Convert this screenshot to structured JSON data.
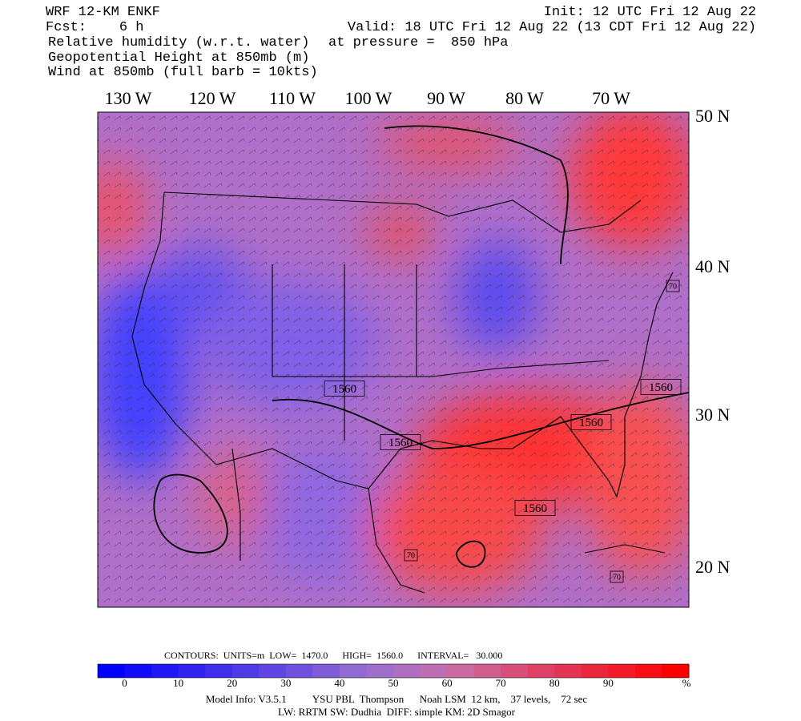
{
  "header": {
    "left": [
      "WRF 12-KM ENKF",
      "Fcst:    6 h",
      "Relative humidity (w.r.t. water)",
      "Geopotential Height at 850mb (m)",
      "Wind at 850mb (full barb = 10kts)"
    ],
    "right": [
      "Init: 12 UTC Fri 12 Aug 22",
      "Valid: 18 UTC Fri 12 Aug 22 (13 CDT Fri 12 Aug 22)",
      "at pressure =  850 hPa"
    ]
  },
  "map": {
    "longitude_labels": [
      "130 W",
      "120 W",
      "110 W",
      "100 W",
      "90 W",
      "80 W",
      "70 W"
    ],
    "latitude_labels": [
      "50 N",
      "40 N",
      "30 N",
      "20 N"
    ],
    "contour_labels": [
      "1560",
      "1560",
      "1560",
      "1560",
      "1560",
      "70",
      "70",
      "70"
    ]
  },
  "footer": {
    "contours": "CONTOURS:  UNITS=m  LOW=  1470.0      HIGH=  1560.0      INTERVAL=   30.000",
    "colorbar_labels": [
      "0",
      "10",
      "20",
      "30",
      "40",
      "50",
      "60",
      "70",
      "80",
      "90",
      "%"
    ],
    "model_info": [
      "Model Info: V3.5.1          YSU PBL  Thompson      Noah LSM  12 km,    37 levels,    72 sec",
      "LW: RRTM SW: Dudhia  DIFF: simple KM: 2D Smagor"
    ]
  }
}
